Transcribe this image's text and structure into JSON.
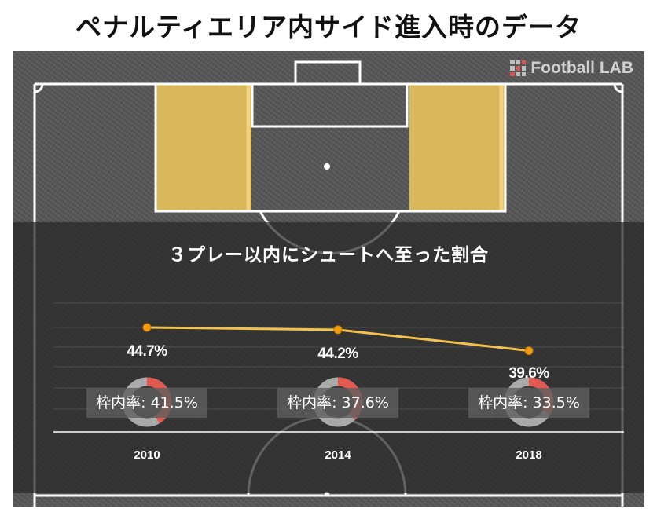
{
  "page": {
    "title": "ペナルティエリア内サイド進入時のデータ",
    "brand": "Football LAB"
  },
  "colors": {
    "zone_fill": "#d8b85a",
    "line": "#f2c14e",
    "marker": "#f39c12",
    "donut_base": "#a9a9a9",
    "donut_accent": "#e05a4f"
  },
  "chart_data": {
    "type": "line",
    "title": "３プレー以内にシュートへ至った割合",
    "categories": [
      "2010",
      "2014",
      "2018"
    ],
    "series": [
      {
        "values": [
          44.7,
          44.2,
          39.6
        ]
      }
    ],
    "value_labels": [
      "44.7%",
      "44.2%",
      "39.6%"
    ],
    "on_target": {
      "label": "枠内率:",
      "values": [
        41.5,
        37.6,
        33.5
      ],
      "labels": [
        "41.5%",
        "37.6%",
        "33.5%"
      ]
    },
    "grid": true
  }
}
